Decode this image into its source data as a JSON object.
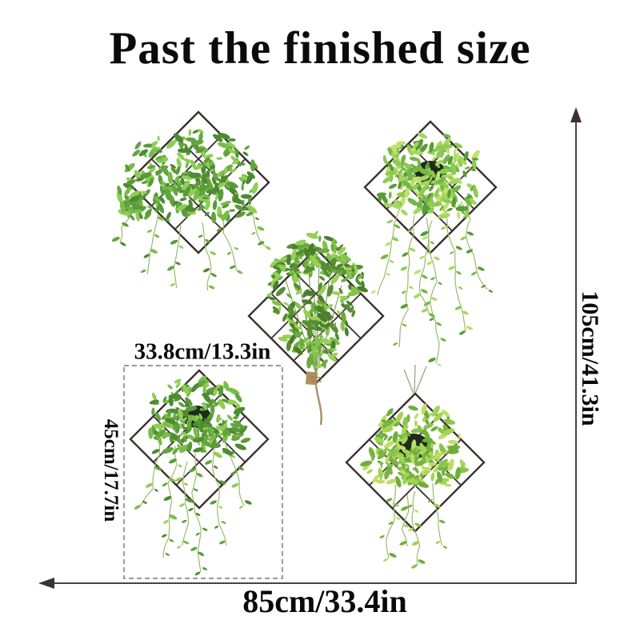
{
  "title": "Past the finished size",
  "dimensions": {
    "overall_height": "105cm/41.3in",
    "overall_width": "85cm/33.4in",
    "panel_width": "33.8cm/13.3in",
    "panel_height": "45cm/17.7in"
  },
  "plants": [
    "trailing-plant-in-diamond-grid-top-left",
    "hanging-pot-plant-in-diamond-grid-top-right",
    "tied-herb-bundle-in-diamond-grid-center",
    "trailing-pot-plant-in-diamond-grid-bottom-left",
    "hanging-pot-plant-in-diamond-grid-bottom-right"
  ],
  "colors": {
    "text": "#0a0a0a",
    "measure_line": "#4a423f",
    "dashed_outline": "#777777",
    "grid_frame": "#3a322e",
    "leaf_green": "#79bd49",
    "pot_dark": "#1f2b1c"
  }
}
